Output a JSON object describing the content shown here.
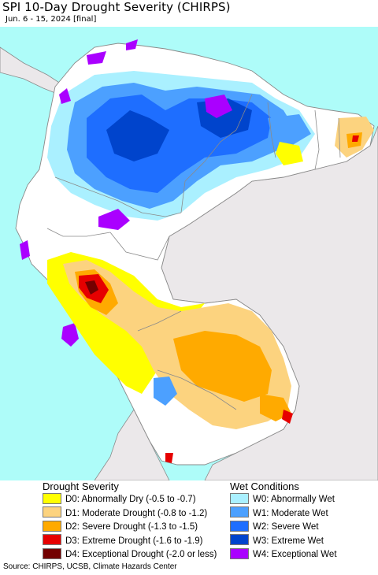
{
  "map": {
    "title": "SPI 10-Day Drought Severity (CHIRPS)",
    "subtitle": "Jun. 6 - 15, 2024 [final]",
    "colors": {
      "ocean": "#aefcf9",
      "outside_land": "#ebe8ea",
      "land_normal": "#ffffff",
      "border": "#8a8a8a"
    }
  },
  "legend": {
    "drought": {
      "heading": "Drought Severity",
      "items": [
        {
          "label": "D0: Abnormally Dry (-0.5 to -0.7)",
          "color": "#ffff00"
        },
        {
          "label": "D1: Moderate Drought (-0.8 to -1.2)",
          "color": "#fcd37f"
        },
        {
          "label": "D2: Severe Drought (-1.3 to -1.5)",
          "color": "#ffaa00"
        },
        {
          "label": "D3: Extreme Drought (-1.6 to -1.9)",
          "color": "#e60000"
        },
        {
          "label": "D4: Exceptional Drought (-2.0 or less)",
          "color": "#730000"
        }
      ]
    },
    "wet": {
      "heading": "Wet Conditions",
      "items": [
        {
          "label": "W0: Abnormally Wet",
          "color": "#aaf0ff"
        },
        {
          "label": "W1: Moderate Wet",
          "color": "#4ca0ff"
        },
        {
          "label": "W2: Severe Wet",
          "color": "#1e6eff"
        },
        {
          "label": "W3: Extreme Wet",
          "color": "#0044cc"
        },
        {
          "label": "W4: Exceptional Wet",
          "color": "#aa00ff"
        }
      ]
    }
  },
  "footer": {
    "source": "Source: CHIRPS, UCSB, Climate Hazards Center"
  }
}
